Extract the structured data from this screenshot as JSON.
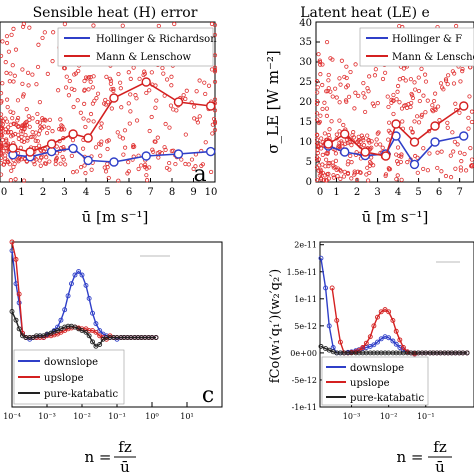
{
  "colors": {
    "scatter": "#e03030",
    "series_blue": "#2f3fc8",
    "series_red": "#d42020",
    "series_black": "#222222"
  },
  "chart_data": [
    {
      "id": "a",
      "type": "scatter",
      "title": "Sensible heat (H) error",
      "xlabel": "ū [m s⁻¹]",
      "ylabel": "",
      "panel_letter": "a",
      "xlim": [
        0,
        10
      ],
      "ylim": [
        0,
        40
      ],
      "xticks": [
        "0",
        "1",
        "2",
        "3",
        "4",
        "5",
        "6",
        "7",
        "8",
        "9",
        "10"
      ],
      "legend": [
        "Hollinger & Richardson",
        "Mann & Lenschow"
      ],
      "series": [
        {
          "name": "Hollinger & Richardson",
          "x": [
            0.6,
            1.4,
            2.4,
            3.4,
            4.1,
            5.3,
            6.8,
            8.3,
            9.8
          ],
          "y": [
            6.8,
            6.3,
            7.6,
            8.4,
            5.4,
            5.0,
            6.5,
            7.0,
            7.6
          ]
        },
        {
          "name": "Mann & Lenschow",
          "x": [
            0.6,
            1.4,
            2.4,
            3.4,
            4.1,
            5.3,
            6.8,
            8.3,
            9.8
          ],
          "y": [
            8.5,
            7.5,
            9.5,
            12.0,
            11.0,
            21.0,
            25.0,
            20.0,
            19.0
          ]
        }
      ]
    },
    {
      "id": "b",
      "type": "scatter",
      "title": "Latent heat (LE) e",
      "xlabel": "ū [m s⁻¹]",
      "ylabel": "σ_LE [W m⁻²]",
      "panel_letter": "",
      "xlim": [
        0,
        7.7
      ],
      "ylim": [
        0,
        40
      ],
      "xticks": [
        "0",
        "1",
        "2",
        "3",
        "4",
        "5",
        "6",
        "7"
      ],
      "yticks": [
        "0",
        "5",
        "10",
        "15",
        "20",
        "25",
        "30",
        "35",
        "40"
      ],
      "legend": [
        "Hollinger & F",
        "Mann & Lenschow"
      ],
      "series": [
        {
          "name": "Hollinger & F",
          "x": [
            0.6,
            1.4,
            2.4,
            3.4,
            3.9,
            4.8,
            5.8,
            7.2
          ],
          "y": [
            9.0,
            7.5,
            6.6,
            7.0,
            11.5,
            4.4,
            10.0,
            11.5
          ]
        },
        {
          "name": "Mann & Lenschow",
          "x": [
            0.6,
            1.4,
            2.4,
            3.4,
            3.9,
            4.8,
            5.8,
            7.2
          ],
          "y": [
            9.5,
            12.0,
            7.5,
            6.5,
            14.5,
            10.0,
            14.0,
            19.0
          ]
        }
      ]
    },
    {
      "id": "c",
      "type": "line",
      "title": "",
      "xlabel": "n = fz/ū",
      "ylabel": "",
      "panel_letter": "c",
      "xscale": "log",
      "xlim": [
        0.0001,
        100
      ],
      "xticks": [
        "10⁻⁴",
        "10⁻³",
        "10⁻²",
        "10⁻¹",
        "10⁰",
        "10¹"
      ],
      "legend": [
        "downslope",
        "upslope",
        "pure-katabatic"
      ],
      "series": [
        {
          "name": "downslope",
          "x": [
            0.0001,
            0.00013,
            0.00016,
            0.0002,
            0.00025,
            0.00032,
            0.0004,
            0.0005,
            0.00063,
            0.0008,
            0.001,
            0.0013,
            0.0016,
            0.002,
            0.0025,
            0.0032,
            0.004,
            0.005,
            0.0063,
            0.008,
            0.01,
            0.013,
            0.016,
            0.02,
            0.025,
            0.032,
            0.04,
            0.05,
            0.063,
            0.08,
            0.1,
            0.13,
            0.16,
            0.2,
            0.25,
            0.32,
            0.4,
            0.5,
            0.63,
            0.8,
            1.0,
            1.3
          ],
          "y": [
            1.0,
            0.62,
            0.4,
            0.05,
            0.0,
            -0.02,
            0.0,
            0.0,
            0.02,
            0.0,
            0.03,
            0.05,
            0.08,
            0.12,
            0.2,
            0.32,
            0.48,
            0.62,
            0.72,
            0.76,
            0.72,
            0.6,
            0.45,
            0.28,
            0.16,
            0.08,
            0.04,
            0.02,
            0.0,
            0.0,
            -0.02,
            0.0,
            0.0,
            0.0,
            0.0,
            0.0,
            0.0,
            0.0,
            0.0,
            0.0,
            0.0,
            0.0
          ]
        },
        {
          "name": "upslope",
          "x": [
            0.0001,
            0.00013,
            0.00016,
            0.0002,
            0.00025,
            0.00032,
            0.0004,
            0.0005,
            0.00063,
            0.0008,
            0.001,
            0.0013,
            0.0016,
            0.002,
            0.0025,
            0.0032,
            0.004,
            0.005,
            0.0063,
            0.008,
            0.01,
            0.013,
            0.016,
            0.02,
            0.025,
            0.032,
            0.04,
            0.05,
            0.063,
            0.08,
            0.1,
            0.13,
            0.16,
            0.2,
            0.25,
            0.32,
            0.4,
            0.5,
            0.63,
            0.8,
            1.0,
            1.3
          ],
          "y": [
            1.3,
            0.9,
            0.5,
            0.05,
            0.0,
            0.0,
            0.0,
            0.0,
            0.0,
            0.0,
            0.02,
            0.02,
            0.03,
            0.04,
            0.06,
            0.08,
            0.1,
            0.11,
            0.12,
            0.11,
            0.1,
            0.1,
            0.08,
            0.08,
            0.06,
            0.02,
            0.0,
            -0.02,
            0.02,
            0.0,
            0.0,
            0.0,
            0.0,
            0.0,
            0.0,
            0.0,
            0.0,
            0.0,
            0.0,
            0.0,
            0.0,
            0.0
          ]
        },
        {
          "name": "pure-katabatic",
          "x": [
            0.0001,
            0.00013,
            0.00016,
            0.0002,
            0.00025,
            0.00032,
            0.0004,
            0.0005,
            0.00063,
            0.0008,
            0.001,
            0.0013,
            0.0016,
            0.002,
            0.0025,
            0.0032,
            0.004,
            0.005,
            0.0063,
            0.008,
            0.01,
            0.013,
            0.016,
            0.02,
            0.025,
            0.032,
            0.04,
            0.05,
            0.063,
            0.08,
            0.1,
            0.13,
            0.16,
            0.2,
            0.25,
            0.32,
            0.4,
            0.5,
            0.63,
            0.8,
            1.0,
            1.3
          ],
          "y": [
            0.3,
            0.2,
            0.1,
            0.02,
            0.0,
            0.0,
            0.0,
            0.02,
            0.02,
            0.02,
            0.04,
            0.05,
            0.07,
            0.08,
            0.1,
            0.12,
            0.13,
            0.13,
            0.12,
            0.1,
            0.08,
            0.06,
            0.02,
            -0.05,
            -0.1,
            -0.08,
            -0.02,
            0.0,
            0.0,
            0.0,
            0.0,
            0.0,
            0.0,
            0.0,
            0.0,
            0.0,
            0.0,
            0.0,
            0.0,
            0.0,
            0.0,
            0.0
          ]
        }
      ]
    },
    {
      "id": "d",
      "type": "line",
      "title": "",
      "xlabel": "n = fz/ū",
      "ylabel": "fCo(w₁′q₁′)(w₂′q₂′)",
      "panel_letter": "",
      "xscale": "log",
      "xlim": [
        0.0001,
        2
      ],
      "ylim": [
        -1e-11,
        2e-11
      ],
      "xticks": [
        "10⁻³",
        "10⁻²",
        "10⁻¹"
      ],
      "yticks": [
        "2e-11",
        "1.5e-11",
        "1e-11",
        "5e-12",
        "0e+00",
        "-5e-12",
        "-1e-11"
      ],
      "legend": [
        "downslope",
        "upslope",
        "pure-katabatic"
      ],
      "series": [
        {
          "name": "downslope",
          "x": [
            0.00015,
            0.0002,
            0.00025,
            0.00032,
            0.0004,
            0.0005,
            0.00063,
            0.0008,
            0.001,
            0.0013,
            0.0016,
            0.002,
            0.0025,
            0.0032,
            0.004,
            0.005,
            0.0063,
            0.008,
            0.01,
            0.013,
            0.016,
            0.02,
            0.025,
            0.032,
            0.04,
            0.05,
            0.063,
            0.08,
            0.1,
            0.13,
            0.16,
            0.2,
            0.25,
            0.32,
            0.4,
            0.5,
            0.63,
            0.8,
            1.0,
            1.3
          ],
          "y": [
            1.75e-11,
            1.2e-11,
            5e-12,
            1e-12,
            0.0,
            0.0,
            0.0,
            1e-13,
            2e-13,
            4e-13,
            6e-13,
            8e-13,
            1e-12,
            1.2e-12,
            1.5e-12,
            2e-12,
            2.6e-12,
            3e-12,
            2.8e-12,
            2.2e-12,
            1.6e-12,
            1e-12,
            6e-13,
            2e-13,
            0.0,
            -2e-13,
            0.0,
            0.0,
            0.0,
            0.0,
            0.0,
            0.0,
            0.0,
            0.0,
            0.0,
            0.0,
            0.0,
            0.0,
            0.0,
            0.0
          ]
        },
        {
          "name": "upslope",
          "x": [
            0.0003,
            0.0004,
            0.0005,
            0.00063,
            0.0008,
            0.001,
            0.0013,
            0.0016,
            0.002,
            0.0025,
            0.0032,
            0.004,
            0.005,
            0.0063,
            0.008,
            0.01,
            0.013,
            0.016,
            0.02,
            0.025,
            0.032,
            0.04,
            0.05,
            0.063,
            0.08,
            0.1,
            0.13,
            0.16,
            0.2,
            0.25,
            0.32,
            0.4,
            0.5,
            0.63,
            0.8,
            1.0,
            1.3
          ],
          "y": [
            1.2e-11,
            6e-12,
            2e-12,
            0.0,
            0.0,
            1e-13,
            2e-13,
            5e-13,
            1e-12,
            1.8e-12,
            3e-12,
            5e-12,
            6.6e-12,
            7.6e-12,
            8e-12,
            7.6e-12,
            6e-12,
            4e-12,
            2.4e-12,
            1e-12,
            2e-13,
            0.0,
            -2e-13,
            0.0,
            0.0,
            0.0,
            0.0,
            0.0,
            0.0,
            0.0,
            0.0,
            0.0,
            0.0,
            0.0,
            0.0,
            0.0,
            0.0
          ]
        },
        {
          "name": "pure-katabatic",
          "x": [
            0.00015,
            0.0002,
            0.00025,
            0.00032,
            0.0004,
            0.0005,
            0.00063,
            0.0008,
            0.001,
            0.0013,
            0.0016,
            0.002,
            0.0025,
            0.0032,
            0.004,
            0.005,
            0.0063,
            0.008,
            0.01,
            0.013,
            0.016,
            0.02,
            0.025,
            0.032,
            0.04,
            0.05,
            0.063,
            0.08,
            0.1,
            0.13,
            0.16,
            0.2,
            0.25,
            0.32,
            0.4,
            0.5,
            0.63,
            0.8,
            1.0,
            1.3
          ],
          "y": [
            1.2e-12,
            8e-13,
            5e-13,
            2e-13,
            0.0,
            0.0,
            0.0,
            0.0,
            0.0,
            0.0,
            0.0,
            0.0,
            0.0,
            0.0,
            0.0,
            0.0,
            0.0,
            0.0,
            0.0,
            0.0,
            0.0,
            0.0,
            0.0,
            0.0,
            0.0,
            0.0,
            0.0,
            0.0,
            0.0,
            0.0,
            0.0,
            0.0,
            0.0,
            0.0,
            0.0,
            0.0,
            0.0,
            0.0,
            0.0,
            0.0
          ]
        }
      ]
    }
  ]
}
